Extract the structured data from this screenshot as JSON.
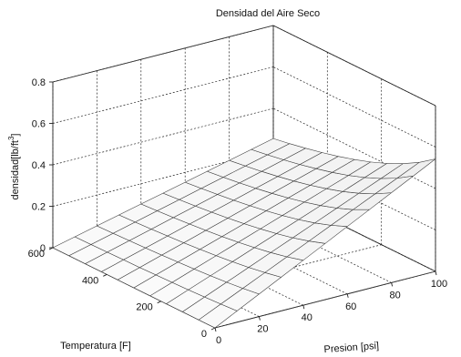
{
  "chart_data": {
    "type": "surface",
    "title": "Densidad del Aire Seco",
    "xlabel": "Presion [psi]",
    "ylabel": "Temperatura [F]",
    "zlabel": "densidad[lb/ft",
    "zlabel_sup": "3",
    "zlabel_end": "]",
    "xlim": [
      0,
      100
    ],
    "ylim": [
      0,
      600
    ],
    "zlim": [
      0,
      0.8
    ],
    "x_ticks": [
      "0",
      "20",
      "40",
      "60",
      "80",
      "100"
    ],
    "y_ticks": [
      "0",
      "200",
      "400",
      "600"
    ],
    "z_ticks": [
      "0",
      "0.2",
      "0.4",
      "0.6",
      "0.8"
    ],
    "grid": true,
    "x": [
      0,
      10,
      20,
      30,
      40,
      50,
      60,
      70,
      80,
      90,
      100
    ],
    "y": [
      0,
      60,
      120,
      180,
      240,
      300,
      360,
      420,
      480,
      540,
      600
    ],
    "z": [
      [
        0,
        0.0543,
        0.1086,
        0.1628,
        0.2171,
        0.2714,
        0.3257,
        0.38,
        0.4343,
        0.4885,
        0.5428
      ],
      [
        0,
        0.0488,
        0.0975,
        0.1463,
        0.195,
        0.2438,
        0.2926,
        0.3413,
        0.3901,
        0.4388,
        0.4876
      ],
      [
        0,
        0.0443,
        0.0885,
        0.1328,
        0.177,
        0.2213,
        0.2656,
        0.3098,
        0.3541,
        0.3983,
        0.4426
      ],
      [
        0,
        0.0405,
        0.081,
        0.1215,
        0.162,
        0.2025,
        0.243,
        0.2835,
        0.324,
        0.3645,
        0.405
      ],
      [
        0,
        0.0373,
        0.0747,
        0.112,
        0.1493,
        0.1867,
        0.224,
        0.2614,
        0.2987,
        0.336,
        0.3734
      ],
      [
        0,
        0.0346,
        0.0693,
        0.1039,
        0.1386,
        0.1732,
        0.2078,
        0.2425,
        0.2771,
        0.3118,
        0.3464
      ],
      [
        0,
        0.0323,
        0.0646,
        0.0969,
        0.1292,
        0.1615,
        0.1938,
        0.2262,
        0.2585,
        0.2908,
        0.3231
      ],
      [
        0,
        0.0303,
        0.0605,
        0.0908,
        0.1211,
        0.1513,
        0.1816,
        0.2119,
        0.2421,
        0.2724,
        0.3027
      ],
      [
        0,
        0.0285,
        0.0569,
        0.0854,
        0.1139,
        0.1423,
        0.1708,
        0.1993,
        0.2278,
        0.2562,
        0.2847
      ],
      [
        0,
        0.0269,
        0.0537,
        0.0806,
        0.1075,
        0.1344,
        0.1612,
        0.1881,
        0.215,
        0.2418,
        0.2687
      ],
      [
        0,
        0.0254,
        0.0509,
        0.0763,
        0.1018,
        0.1272,
        0.1527,
        0.1781,
        0.2036,
        0.229,
        0.2545
      ]
    ]
  }
}
